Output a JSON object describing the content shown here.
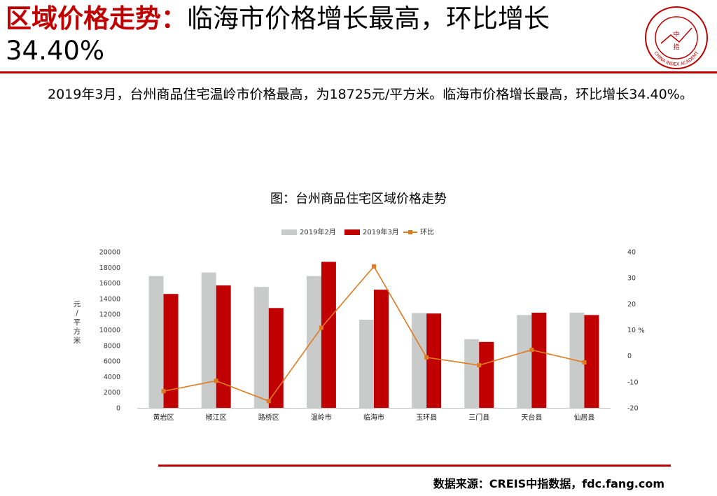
{
  "header": {
    "title_highlight": "区域价格走势：",
    "title_rest": "临海市价格增长最高，环比增长34.40%",
    "logo_name": "CHINA INDEX ACADEMY",
    "logo_center": "中指"
  },
  "body": {
    "paragraph": "2019年3月，台州商品住宅温岭市价格最高，为18725元/平方米。临海市价格增长最高，环比增长34.40%。"
  },
  "colors": {
    "accent": "#c00000",
    "feb_bar": "#c8cbca",
    "mar_bar": "#c00000",
    "line": "#e07b20"
  },
  "chart_data": {
    "type": "bar",
    "title": "图：台州商品住宅区域价格走势",
    "categories": [
      "黄岩区",
      "椒江区",
      "路桥区",
      "温岭市",
      "临海市",
      "玉环县",
      "三门县",
      "天台县",
      "仙居县"
    ],
    "series": [
      {
        "name": "2019年2月",
        "type": "bar",
        "axis": "left",
        "values": [
          16900,
          17350,
          15500,
          16900,
          11300,
          12150,
          8800,
          11900,
          12200
        ]
      },
      {
        "name": "2019年3月",
        "type": "bar",
        "axis": "left",
        "values": [
          14600,
          15700,
          12800,
          18725,
          15150,
          12100,
          8450,
          12200,
          11900
        ]
      },
      {
        "name": "环比",
        "type": "line",
        "axis": "right",
        "values": [
          -13.6,
          -9.6,
          -17.4,
          10.8,
          34.4,
          -0.6,
          -3.6,
          2.3,
          -2.5
        ]
      }
    ],
    "ylabel": "元/平方米",
    "ylim": [
      0,
      20000
    ],
    "yticks": [
      0,
      2000,
      4000,
      6000,
      8000,
      10000,
      12000,
      14000,
      16000,
      18000,
      20000
    ],
    "y2label": "%",
    "y2lim": [
      -20,
      40
    ],
    "y2ticks": [
      -20,
      -10,
      0,
      10,
      20,
      30,
      40
    ],
    "legend": "top-center",
    "grid": false
  },
  "footer": {
    "source": "数据来源：CREIS中指数据，fdc.fang.com"
  }
}
